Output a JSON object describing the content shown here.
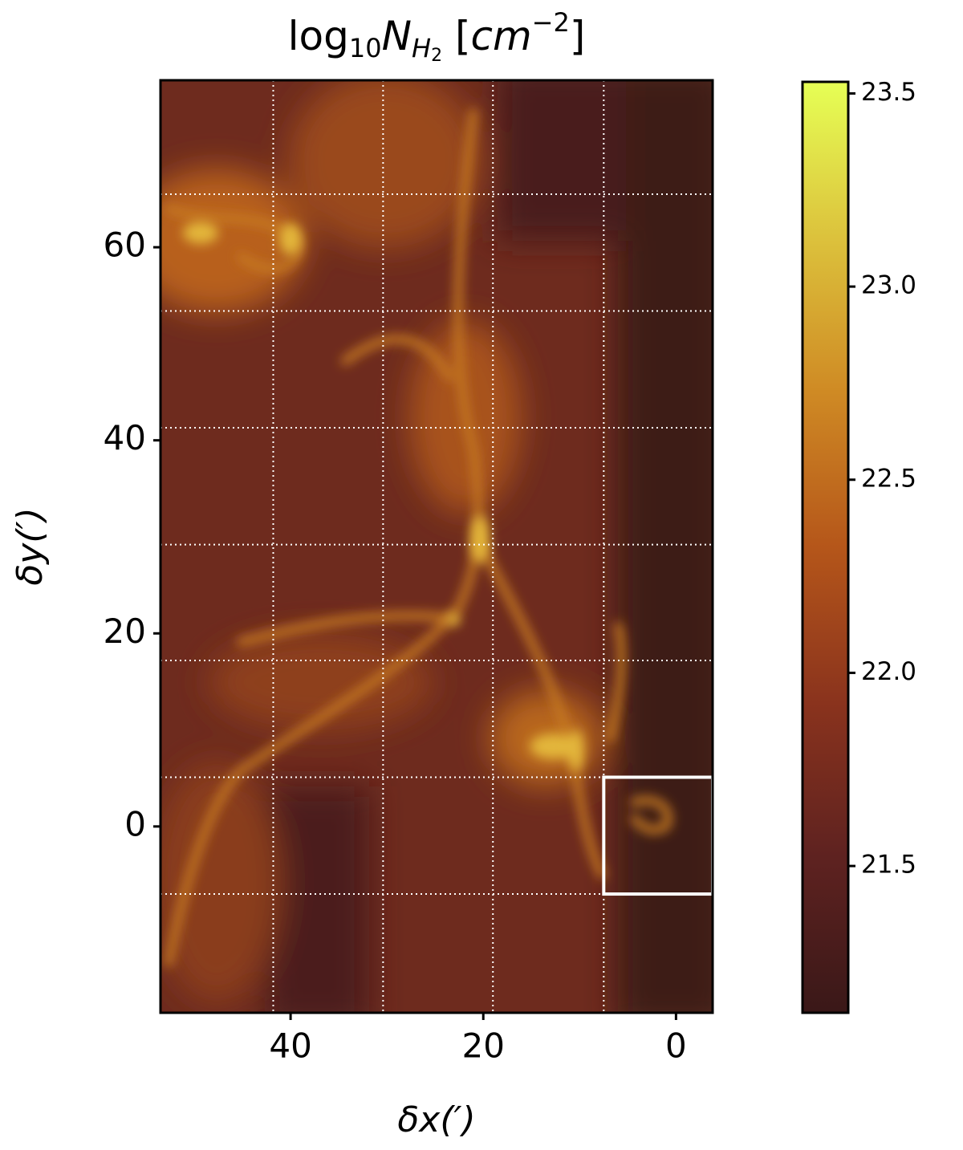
{
  "chart_data": {
    "type": "heatmap",
    "title": [
      "log",
      "10",
      "N",
      "H",
      "2",
      " [",
      "cm",
      "−2",
      "]"
    ],
    "xlabel": "δx(′)",
    "ylabel": "δy(′)",
    "xlim": [
      53.5,
      -3.8
    ],
    "ylim": [
      -19.3,
      77.3
    ],
    "xticks": [
      40,
      20,
      0
    ],
    "yticks": [
      0,
      20,
      40,
      60
    ],
    "xgrid": [
      41.8,
      30.4,
      19.0,
      7.5
    ],
    "ygrid": [
      65.5,
      53.4,
      41.3,
      29.2,
      17.2,
      5.1,
      -7.0
    ],
    "grid_color": "#ffffff",
    "box": {
      "x": [
        7.5,
        -3.8
      ],
      "y": [
        -7.0,
        5.1
      ],
      "color": "#ffffff"
    },
    "clim": [
      21.12,
      23.53
    ],
    "cticks": [
      {
        "value": 21.5,
        "label": "21.5"
      },
      {
        "value": 22,
        "label": "22.0"
      },
      {
        "value": 22.5,
        "label": "22.5"
      },
      {
        "value": 23,
        "label": "23.0"
      },
      {
        "value": 23.5,
        "label": "23.5"
      }
    ],
    "colormap": [
      "#3a1818",
      "#5e2220",
      "#8a331d",
      "#b5561a",
      "#cf8a24",
      "#dcc23c",
      "#e6ff55"
    ]
  }
}
